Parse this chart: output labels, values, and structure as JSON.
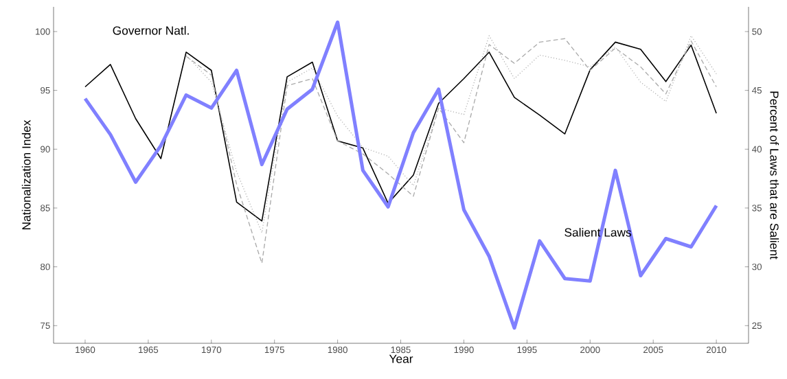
{
  "chart_data": {
    "type": "line",
    "xlabel": "Year",
    "ylabel": "Nationalization Index",
    "y2label": "Percent of Laws that are Salient",
    "x": [
      1960,
      1962,
      1964,
      1966,
      1968,
      1970,
      1972,
      1974,
      1976,
      1978,
      1980,
      1982,
      1984,
      1986,
      1988,
      1990,
      1992,
      1994,
      1996,
      1998,
      2000,
      2002,
      2004,
      2006,
      2008,
      2010
    ],
    "series": [
      {
        "name": "Governor Natl.",
        "color": "#000000",
        "line_style": "solid",
        "values": [
          95.3,
          97.2,
          92.6,
          89.2,
          98.25,
          96.7,
          85.5,
          83.9,
          96.15,
          97.4,
          90.7,
          90.1,
          85.4,
          87.8,
          93.9,
          96.0,
          98.25,
          94.4,
          92.9,
          91.3,
          96.75,
          99.1,
          98.5,
          95.75,
          98.85,
          93.05
        ]
      },
      {
        "color": "#aaaaaa",
        "line_style": "dashed",
        "values": [
          null,
          null,
          null,
          null,
          97.9,
          96.3,
          87.0,
          80.3,
          95.4,
          96.0,
          90.7,
          89.6,
          87.9,
          86.0,
          93.5,
          90.55,
          98.9,
          97.3,
          99.1,
          99.4,
          96.7,
          98.6,
          97.0,
          94.7,
          99.2,
          95.3
        ]
      },
      {
        "color": "#aaaaaa",
        "line_style": "dotted",
        "values": [
          null,
          null,
          null,
          null,
          98.0,
          95.7,
          88.1,
          82.9,
          95.7,
          96.9,
          92.8,
          90.15,
          89.4,
          86.9,
          93.5,
          92.95,
          99.65,
          96.0,
          98.0,
          97.55,
          97.0,
          98.7,
          95.7,
          94.05,
          99.65,
          96.4
        ]
      },
      {
        "name": "Salient Laws",
        "color": "#8080ff",
        "line_style": "solid",
        "axis": "y2",
        "values": [
          44.3,
          41.25,
          37.2,
          40.3,
          44.6,
          43.5,
          46.7,
          38.7,
          43.4,
          45.1,
          50.8,
          38.2,
          35.1,
          41.4,
          45.1,
          34.85,
          30.9,
          24.8,
          32.2,
          29.0,
          28.8,
          38.2,
          29.25,
          32.4,
          31.7,
          35.2
        ]
      }
    ],
    "xlim": [
      1957.5,
      2012.55
    ],
    "xticks": [
      1960,
      1965,
      1970,
      1975,
      1980,
      1985,
      1990,
      1995,
      2000,
      2005,
      2010
    ],
    "ylim": [
      73.5,
      102.1
    ],
    "yticks": [
      75,
      80,
      85,
      90,
      95,
      100
    ],
    "y2lim": [
      23.5,
      52.1
    ],
    "y2ticks": [
      25,
      30,
      35,
      40,
      45,
      50
    ],
    "grid": false
  }
}
